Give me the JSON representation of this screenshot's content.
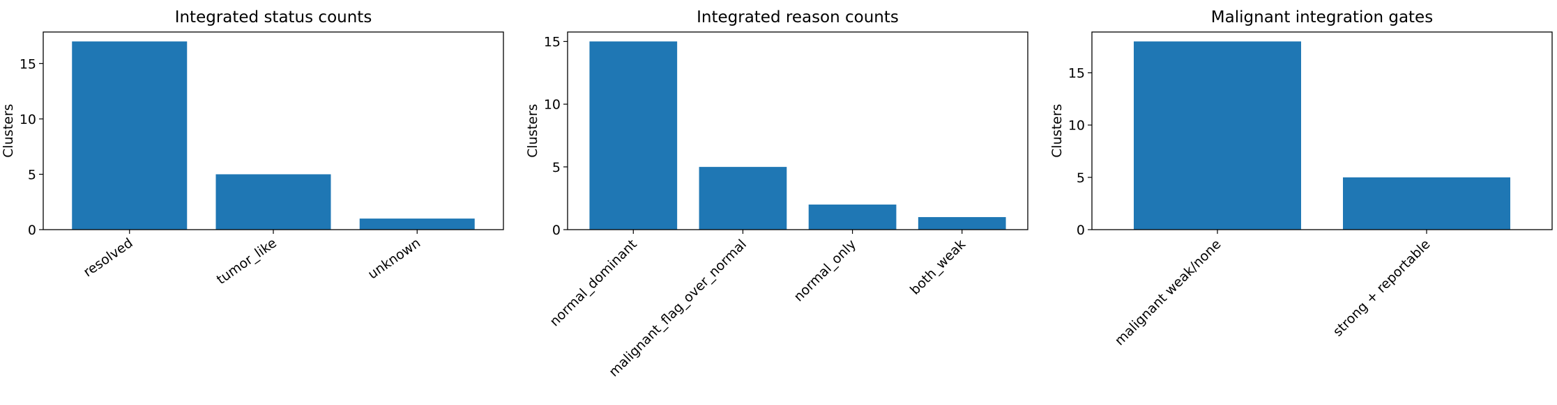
{
  "colors": {
    "bar": "#1f77b4",
    "axis": "#000000",
    "background": "#ffffff"
  },
  "chart_data": [
    {
      "type": "bar",
      "title": "Integrated status counts",
      "xlabel": "",
      "ylabel": "Clusters",
      "categories": [
        "resolved",
        "tumor_like",
        "unknown"
      ],
      "values": [
        17,
        5,
        1
      ],
      "ylim": [
        0,
        17.85
      ],
      "yticks": [
        0,
        5,
        10,
        15
      ],
      "tick_rotation": 35,
      "grid": false,
      "legend": "none"
    },
    {
      "type": "bar",
      "title": "Integrated reason counts",
      "xlabel": "",
      "ylabel": "Clusters",
      "categories": [
        "normal_dominant",
        "malignant_flag_over_normal",
        "normal_only",
        "both_weak"
      ],
      "values": [
        15,
        5,
        2,
        1
      ],
      "ylim": [
        0,
        15.75
      ],
      "yticks": [
        0,
        5,
        10,
        15
      ],
      "tick_rotation": 45,
      "grid": false,
      "legend": "none"
    },
    {
      "type": "bar",
      "title": "Malignant integration gates",
      "xlabel": "",
      "ylabel": "Clusters",
      "categories": [
        "malignant weak/none",
        "strong + reportable"
      ],
      "values": [
        18,
        5
      ],
      "ylim": [
        0,
        18.9
      ],
      "yticks": [
        0,
        5,
        10,
        15
      ],
      "tick_rotation": 45,
      "grid": false,
      "legend": "none"
    }
  ]
}
